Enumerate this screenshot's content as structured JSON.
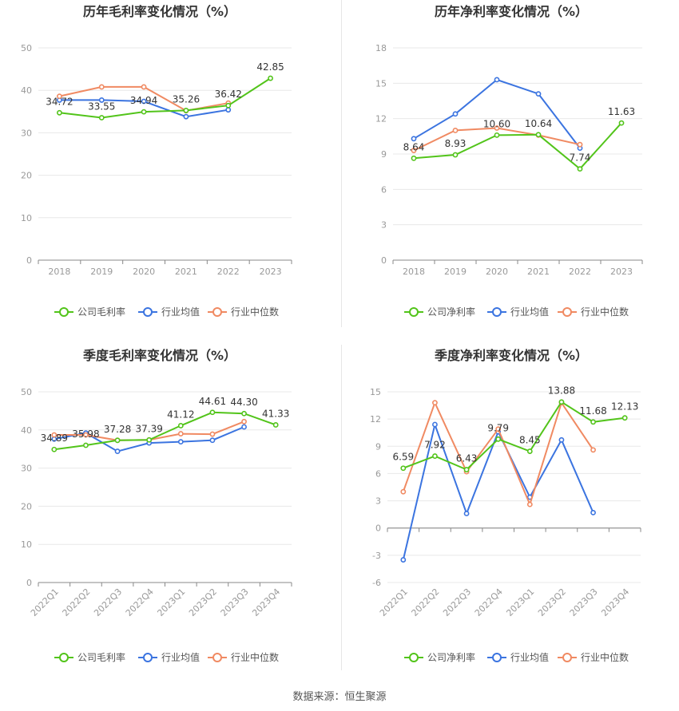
{
  "source": "数据来源：恒生聚源",
  "colors": {
    "company": "#52c41a",
    "industry_avg": "#3b74e0",
    "industry_median": "#f08a62",
    "grid": "#e8e8e8",
    "axis": "#999999",
    "label": "#333333"
  },
  "chart_data": [
    {
      "type": "line",
      "title": "历年毛利率变化情况（%）",
      "categories": [
        "2018",
        "2019",
        "2020",
        "2021",
        "2022",
        "2023"
      ],
      "ylim": [
        0,
        50
      ],
      "yticks": [
        0,
        10,
        20,
        30,
        40,
        50
      ],
      "series": [
        {
          "name": "公司毛利率",
          "key": "company",
          "values": [
            34.72,
            33.55,
            34.94,
            35.26,
            36.42,
            42.85
          ]
        },
        {
          "name": "行业均值",
          "key": "industry_avg",
          "values": [
            37.7,
            37.7,
            37.4,
            33.8,
            35.4,
            null
          ]
        },
        {
          "name": "行业中位数",
          "key": "industry_median",
          "values": [
            38.6,
            40.8,
            40.8,
            35.2,
            37.0,
            null
          ]
        }
      ],
      "data_labels": [
        "34.72",
        "33.55",
        "34.94",
        "35.26",
        "36.42",
        "42.85"
      ],
      "rotate_xticks": false
    },
    {
      "type": "line",
      "title": "历年净利率变化情况（%）",
      "categories": [
        "2018",
        "2019",
        "2020",
        "2021",
        "2022",
        "2023"
      ],
      "ylim": [
        0,
        18
      ],
      "yticks": [
        0,
        3,
        6,
        9,
        12,
        15,
        18
      ],
      "series": [
        {
          "name": "公司净利率",
          "key": "company",
          "values": [
            8.64,
            8.93,
            10.6,
            10.64,
            7.74,
            11.63
          ]
        },
        {
          "name": "行业均值",
          "key": "industry_avg",
          "values": [
            10.3,
            12.4,
            15.3,
            14.1,
            9.5,
            null
          ]
        },
        {
          "name": "行业中位数",
          "key": "industry_median",
          "values": [
            9.3,
            11.0,
            11.2,
            10.6,
            9.8,
            null
          ]
        }
      ],
      "data_labels": [
        "8.64",
        "8.93",
        "10.60",
        "10.64",
        "7.74",
        "11.63"
      ],
      "rotate_xticks": false
    },
    {
      "type": "line",
      "title": "季度毛利率变化情况（%）",
      "categories": [
        "2022Q1",
        "2022Q2",
        "2022Q3",
        "2022Q4",
        "2023Q1",
        "2023Q2",
        "2023Q3",
        "2023Q4"
      ],
      "ylim": [
        0,
        50
      ],
      "yticks": [
        0,
        10,
        20,
        30,
        40,
        50
      ],
      "series": [
        {
          "name": "公司毛利率",
          "key": "company",
          "values": [
            34.89,
            35.98,
            37.28,
            37.39,
            41.12,
            44.61,
            44.3,
            41.33
          ]
        },
        {
          "name": "行业均值",
          "key": "industry_avg",
          "values": [
            37.6,
            39.2,
            34.4,
            36.6,
            36.9,
            37.3,
            40.8,
            null
          ]
        },
        {
          "name": "行业中位数",
          "key": "industry_median",
          "values": [
            38.7,
            38.7,
            37.3,
            37.4,
            39.0,
            38.9,
            42.2,
            null
          ]
        }
      ],
      "data_labels": [
        "34.89",
        "35.98",
        "37.28",
        "37.39",
        "41.12",
        "44.61",
        "44.30",
        "41.33"
      ],
      "rotate_xticks": true
    },
    {
      "type": "line",
      "title": "季度净利率变化情况（%）",
      "categories": [
        "2022Q1",
        "2022Q2",
        "2022Q3",
        "2022Q4",
        "2023Q1",
        "2023Q2",
        "2023Q3",
        "2023Q4"
      ],
      "ylim": [
        -6,
        15
      ],
      "yticks": [
        -6,
        -3,
        0,
        3,
        6,
        9,
        12,
        15
      ],
      "series": [
        {
          "name": "公司净利率",
          "key": "company",
          "values": [
            6.59,
            7.92,
            6.43,
            9.79,
            8.45,
            13.88,
            11.68,
            12.13
          ]
        },
        {
          "name": "行业均值",
          "key": "industry_avg",
          "values": [
            -3.5,
            11.4,
            1.6,
            10.6,
            3.4,
            9.7,
            1.7,
            null
          ]
        },
        {
          "name": "行业中位数",
          "key": "industry_median",
          "values": [
            4.0,
            13.8,
            6.2,
            10.9,
            2.6,
            13.8,
            8.6,
            null
          ]
        }
      ],
      "data_labels": [
        "6.59",
        "7.92",
        "6.43",
        "9.79",
        "8.45",
        "13.88",
        "11.68",
        "12.13"
      ],
      "rotate_xticks": true
    }
  ]
}
